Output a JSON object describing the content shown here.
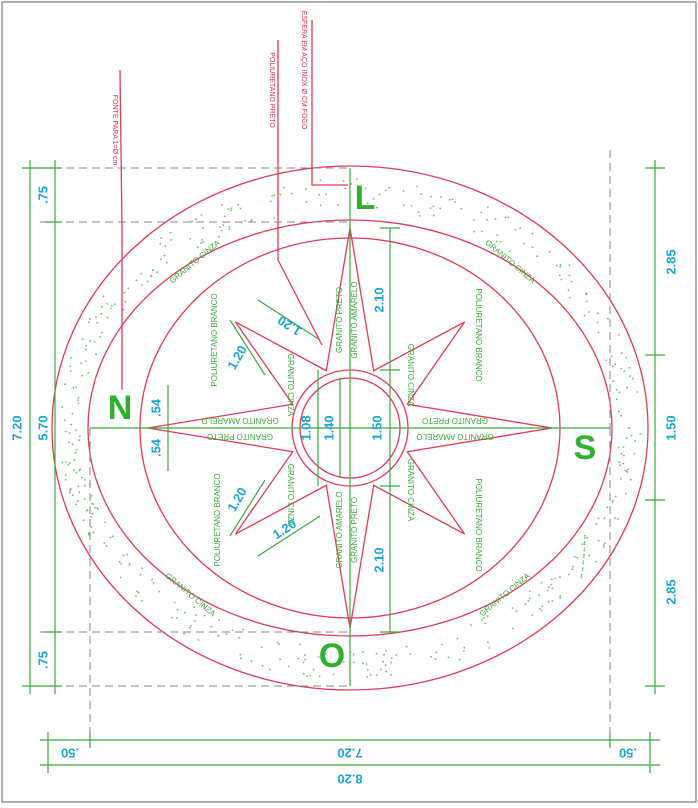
{
  "cardinal": {
    "north": "N",
    "south": "S",
    "east": "L",
    "west": "O"
  },
  "leaders": [
    "FONTE PARA 1=Ø cm",
    "POLIURETANO PRETO",
    "ESFERA EM AÇO INOX Ø CM FOGO"
  ],
  "materials": {
    "ring": "GRANITO CINZA",
    "field": "POLIURETANO BRANCO",
    "star_black": "GRANITO PRETO",
    "star_yellow": "GRANITO AMARELO",
    "star_gray": "GRANITO CINZA"
  },
  "dimensions": {
    "left": [
      ".75",
      "5.70",
      ".75",
      "7.20"
    ],
    "right": [
      "2.85",
      "1.50",
      "2.85"
    ],
    "bottom": [
      ".50",
      "7.20",
      ".50",
      "8.20"
    ],
    "inner": [
      "2.10",
      "1.50",
      "2.10",
      "1.40",
      "1.08",
      ".54",
      ".54",
      "1.20",
      "1.20",
      "1.20",
      "1.20"
    ]
  }
}
